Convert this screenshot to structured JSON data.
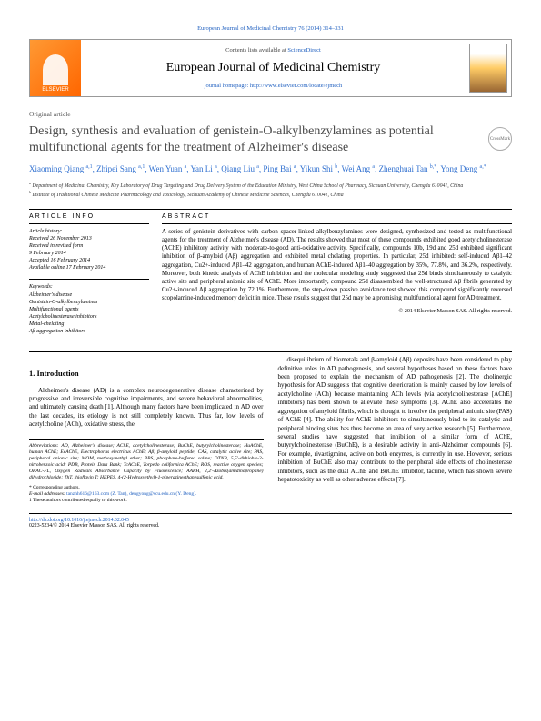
{
  "top_citation": "European Journal of Medicinal Chemistry 76 (2014) 314–331",
  "publisher_logo": "ELSEVIER",
  "contents_line_prefix": "Contents lists available at ",
  "contents_line_link": "ScienceDirect",
  "journal_name": "European Journal of Medicinal Chemistry",
  "homepage_prefix": "journal homepage: ",
  "homepage_url": "http://www.elsevier.com/locate/ejmech",
  "article_type": "Original article",
  "title": "Design, synthesis and evaluation of genistein-O-alkylbenzylamines as potential multifunctional agents for the treatment of Alzheimer's disease",
  "crossmark_label": "CrossMark",
  "authors_html": "Xiaoming Qiang <sup>a,1</sup>, Zhipei Sang <sup>a,1</sup>, Wen Yuan <sup>a</sup>, Yan Li <sup>a</sup>, Qiang Liu <sup>a</sup>, Ping Bai <sup>a</sup>, Yikun Shi <sup>b</sup>, Wei Ang <sup>a</sup>, Zhenghuai Tan <sup>b,*</sup>, Yong Deng <sup>a,*</sup>",
  "affiliations": [
    "a Department of Medicinal Chemistry, Key Laboratory of Drug Targeting and Drug Delivery System of the Education Ministry, West China School of Pharmacy, Sichuan University, Chengdu 610041, China",
    "b Institute of Traditional Chinese Medicine Pharmacology and Toxicology, Sichuan Academy of Chinese Medicine Sciences, Chengdu 610041, China"
  ],
  "article_info_head": "ARTICLE INFO",
  "abstract_head": "ABSTRACT",
  "history_label": "Article history:",
  "history": [
    "Received 26 November 2013",
    "Received in revised form",
    "9 February 2014",
    "Accepted 16 February 2014",
    "Available online 17 February 2014"
  ],
  "keywords_label": "Keywords:",
  "keywords": [
    "Alzheimer's disease",
    "Genistein-O-alkylbenzylamines",
    "Multifunctional agents",
    "Acetylcholinesterase inhibitors",
    "Metal-chelating",
    "Aβ aggregation inhibitors"
  ],
  "abstract": "A series of genistein derivatives with carbon spacer-linked alkylbenzylamines were designed, synthesized and tested as multifunctional agents for the treatment of Alzheimer's disease (AD). The results showed that most of these compounds exhibited good acetylcholinesterase (AChE) inhibitory activity with moderate-to-good anti-oxidative activity. Specifically, compounds 10b, 19d and 25d exhibited significant inhibition of β-amyloid (Aβ) aggregation and exhibited metal chelating properties. In particular, 25d inhibited: self-induced Aβ1–42 aggregation, Cu2+-induced Aβ1–42 aggregation, and human AChE-induced Aβ1–40 aggregation by 35%, 77.8%, and 36.2%, respectively. Moreover, both kinetic analysis of AChE inhibition and the molecular modeling study suggested that 25d binds simultaneously to catalytic active site and peripheral anionic site of AChE. More importantly, compound 25d disassembled the well-structured Aβ fibrils generated by Cu2+-induced Aβ aggregation by 72.1%. Furthermore, the step-down passive avoidance test showed this compound significantly reversed scopolamine-induced memory deficit in mice. These results suggest that 25d may be a promising multifunctional agent for AD treatment.",
  "copyright": "© 2014 Elsevier Masson SAS. All rights reserved.",
  "intro_head": "1. Introduction",
  "intro_p1": "Alzheimer's disease (AD) is a complex neurodegenerative disease characterized by progressive and irreversible cognitive impairments, and severe behavioral abnormalities, and ultimately causing death [1]. Although many factors have been implicated in AD over the last decades, its etiology is not still completely known. Thus far, low levels of acetylcholine (ACh), oxidative stress, the",
  "intro_p2": "disequilibrium of biometals and β-amyloid (Aβ) deposits have been considered to play definitive roles in AD pathogenesis, and several hypotheses based on these factors have been proposed to explain the mechanism of AD pathogenesis [2]. The cholinergic hypothesis for AD suggests that cognitive deterioration is mainly caused by low levels of acetylcholine (ACh) because maintaining ACh levels (via acetylcholinesterase [AChE] inhibitors) has been shown to alleviate these symptoms [3]. AChE also accelerates the aggregation of amyloid fibrils, which is thought to involve the peripheral anionic site (PAS) of AChE [4]. The ability for AChE inhibitors to simultaneously bind to its catalytic and peripheral binding sites has thus become an area of very active research [5]. Furthermore, several studies have suggested that inhibition of a similar form of AChE, butyrylcholinesterase (BuChE), is a desirable activity in anti-Alzheimer compounds [6]. For example, rivastigmine, active on both enzymes, is currently in use. However, serious inhibition of BuChE also may contribute to the peripheral side effects of cholinesterase inhibitors, such as the dual AChE and BuChE inhibitor, tacrine, which has shown severe hepatotoxicity as well as other adverse effects [7].",
  "abbrev_label": "Abbreviations:",
  "abbrev_text": " AD, Alzheimer's disease; AChE, acetylcholinesterase; BuChE, butyrylcholinesterase; HuAChE, human AChE; EeAChE, Electrophorus electricus AChE; Aβ, β-amyloid peptide; CAS, catalytic active site; PAS, peripheral anionic site; MOM, methoxymethyl ether; PBS, phosphate-buffered saline; DTNB, 5,5′-dithiobis-2-nitrobenzoic acid; PDB, Protein Data Bank; TcAChE, Torpedo californica AChE; ROS, reactive oxygen species; ORAC-FL, Oxygen Radicals Absorbance Capacity by Fluorescence; AAPH, 2,2′-Azobis(amidinopropane) dihydrochloride; ThT, thioflavin T; HEPES, 4-(2-Hydroxyethyl)-1-piperazineethanesulfonic acid.",
  "corresponding_label": "* Corresponding authors.",
  "email_label": "E-mail addresses:",
  "email_text": " tanzhh616@163.com (Z. Tan), dengyong@scu.edu.cn (Y. Deng).",
  "equal_contrib": "1 These authors contributed equally to this work.",
  "doi_link": "http://dx.doi.org/10.1016/j.ejmech.2014.02.045",
  "issn_line": "0223-5234/© 2014 Elsevier Masson SAS. All rights reserved."
}
